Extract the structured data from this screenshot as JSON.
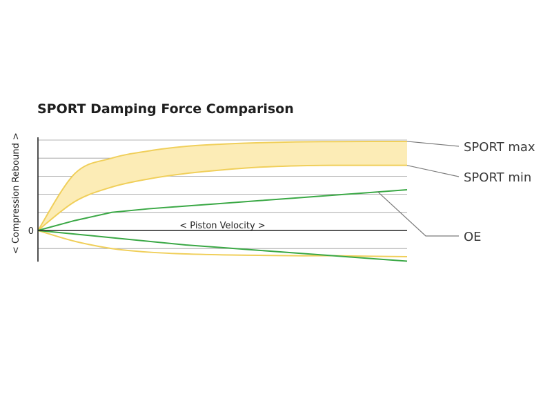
{
  "chart_data": {
    "type": "line",
    "title": "SPORT Damping Force Comparison",
    "xlabel": "< Piston Velocity >",
    "ylabel": "< Compression Rebound >",
    "origin_label": "0",
    "legend_placement": "right",
    "x": [
      0,
      0.1,
      0.2,
      0.3,
      0.4,
      0.5,
      0.6,
      0.7,
      0.8,
      0.9,
      1.0
    ],
    "xlim": [
      0,
      1
    ],
    "ylim": [
      -0.33,
      1.0
    ],
    "grid": true,
    "colors": {
      "sport": "#f0cf5a",
      "band": "#fcecb6",
      "oe": "#3aa845",
      "axis": "#222222",
      "grid": "#9a9a9a",
      "leader": "#7a7a7a"
    },
    "series": [
      {
        "name": "SPORT max",
        "values": [
          0,
          0.63,
          0.8,
          0.88,
          0.93,
          0.955,
          0.97,
          0.98,
          0.983,
          0.985,
          0.985
        ]
      },
      {
        "name": "SPORT min",
        "values": [
          0,
          0.32,
          0.48,
          0.57,
          0.63,
          0.67,
          0.7,
          0.715,
          0.72,
          0.72,
          0.72
        ]
      },
      {
        "name": "OE",
        "values": [
          0,
          0.11,
          0.2,
          0.24,
          0.27,
          0.3,
          0.33,
          0.36,
          0.39,
          0.42,
          0.45
        ]
      },
      {
        "values": [
          0,
          -0.12,
          -0.2,
          -0.24,
          -0.26,
          -0.27,
          -0.275,
          -0.28,
          -0.28,
          -0.285,
          -0.29
        ]
      },
      {
        "values": [
          0,
          -0.04,
          -0.08,
          -0.12,
          -0.16,
          -0.19,
          -0.22,
          -0.25,
          -0.28,
          -0.31,
          -0.34
        ]
      }
    ]
  }
}
